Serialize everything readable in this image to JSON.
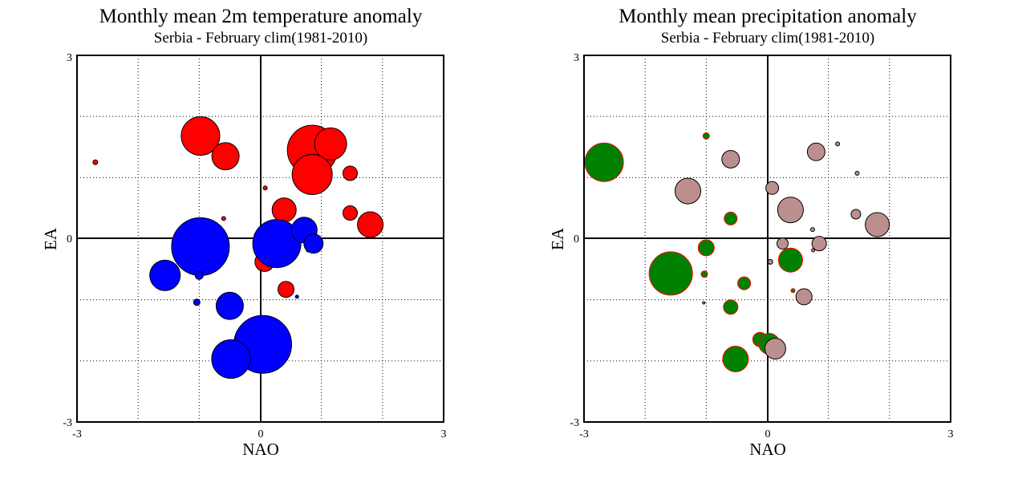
{
  "colors": {
    "warm": "#ff0000",
    "cold": "#0000ff",
    "wet": "#008000",
    "dry": "#bc8f8f",
    "wet_outline": "#ff0000",
    "dry_outline": "#000000"
  },
  "chart_data": [
    {
      "type": "scatter",
      "title": "Monthly mean 2m temperature anomaly",
      "subtitle": "Serbia - February  clim(1981-2010)",
      "xlabel": "NAO",
      "ylabel": "EA",
      "xlim": [
        -3,
        3
      ],
      "ylim": [
        -3,
        3
      ],
      "x_ticks": [
        "-3",
        "0",
        "3"
      ],
      "y_ticks": [
        "-3",
        "0",
        "3"
      ],
      "grid": true,
      "size_encoding": "marker radius proportional to anomaly magnitude",
      "series": [
        {
          "color": "warm",
          "points": [
            {
              "x": -2.7,
              "y": 1.25,
              "r": 3
            },
            {
              "x": -0.98,
              "y": 1.68,
              "r": 24
            },
            {
              "x": -0.57,
              "y": 1.35,
              "r": 17
            },
            {
              "x": 0.85,
              "y": 1.45,
              "r": 31
            },
            {
              "x": 1.15,
              "y": 1.55,
              "r": 20
            },
            {
              "x": 0.85,
              "y": 1.05,
              "r": 25
            },
            {
              "x": 1.47,
              "y": 1.07,
              "r": 9
            },
            {
              "x": 0.08,
              "y": 0.83,
              "r": 2.5
            },
            {
              "x": 0.39,
              "y": 0.47,
              "r": 15
            },
            {
              "x": -0.6,
              "y": 0.33,
              "r": 2.5
            },
            {
              "x": 1.47,
              "y": 0.42,
              "r": 9
            },
            {
              "x": 1.8,
              "y": 0.23,
              "r": 16
            },
            {
              "x": 0.07,
              "y": -0.38,
              "r": 12
            },
            {
              "x": 0.42,
              "y": -0.83,
              "r": 10
            },
            {
              "x": 0.78,
              "y": -0.19,
              "r": 2
            }
          ]
        },
        {
          "color": "cold",
          "points": [
            {
              "x": -0.98,
              "y": -0.13,
              "r": 36
            },
            {
              "x": 0.27,
              "y": -0.08,
              "r": 30
            },
            {
              "x": 0.72,
              "y": 0.14,
              "r": 16
            },
            {
              "x": 0.87,
              "y": -0.08,
              "r": 12
            },
            {
              "x": -1.56,
              "y": -0.6,
              "r": 19
            },
            {
              "x": -1.0,
              "y": -0.6,
              "r": 5
            },
            {
              "x": -1.04,
              "y": -1.04,
              "r": 4
            },
            {
              "x": -0.5,
              "y": -1.1,
              "r": 17
            },
            {
              "x": 0.04,
              "y": -1.73,
              "r": 36
            },
            {
              "x": -0.48,
              "y": -1.97,
              "r": 24
            },
            {
              "x": 0.6,
              "y": -0.95,
              "r": 2
            }
          ]
        }
      ]
    },
    {
      "type": "scatter",
      "title": "Monthly mean precipitation anomaly",
      "subtitle": "Serbia - February  clim(1981-2010)",
      "xlabel": "NAO",
      "ylabel": "EA",
      "xlim": [
        -3,
        3
      ],
      "ylim": [
        -3,
        3
      ],
      "x_ticks": [
        "-3",
        "0",
        "3"
      ],
      "y_ticks": [
        "-3",
        "0",
        "3"
      ],
      "grid": true,
      "size_encoding": "marker radius proportional to anomaly magnitude",
      "series": [
        {
          "color": "wet",
          "points": [
            {
              "x": -2.67,
              "y": 1.25,
              "r": 24
            },
            {
              "x": -1.0,
              "y": 1.68,
              "r": 4
            },
            {
              "x": -0.6,
              "y": 0.33,
              "r": 8
            },
            {
              "x": -1.0,
              "y": -0.15,
              "r": 10
            },
            {
              "x": -1.58,
              "y": -0.57,
              "r": 27
            },
            {
              "x": -1.03,
              "y": -0.58,
              "r": 4
            },
            {
              "x": 0.38,
              "y": -0.35,
              "r": 15
            },
            {
              "x": -0.38,
              "y": -0.73,
              "r": 8
            },
            {
              "x": 0.42,
              "y": -0.85,
              "r": 2.5
            },
            {
              "x": -0.6,
              "y": -1.12,
              "r": 9
            },
            {
              "x": -0.12,
              "y": -1.65,
              "r": 9
            },
            {
              "x": 0.03,
              "y": -1.72,
              "r": 13
            },
            {
              "x": -0.52,
              "y": -1.97,
              "r": 16
            },
            {
              "x": 0.36,
              "y": 0.4,
              "r": 1
            }
          ]
        },
        {
          "color": "dry",
          "points": [
            {
              "x": -1.3,
              "y": 0.78,
              "r": 16
            },
            {
              "x": -0.6,
              "y": 1.3,
              "r": 11
            },
            {
              "x": 0.8,
              "y": 1.42,
              "r": 11
            },
            {
              "x": 1.15,
              "y": 1.55,
              "r": 2.5
            },
            {
              "x": 1.47,
              "y": 1.07,
              "r": 2.5
            },
            {
              "x": 0.08,
              "y": 0.83,
              "r": 8
            },
            {
              "x": 0.38,
              "y": 0.47,
              "r": 16
            },
            {
              "x": 1.45,
              "y": 0.4,
              "r": 6
            },
            {
              "x": 1.8,
              "y": 0.23,
              "r": 15
            },
            {
              "x": 0.74,
              "y": 0.15,
              "r": 2.5
            },
            {
              "x": 0.25,
              "y": -0.08,
              "r": 7
            },
            {
              "x": 0.85,
              "y": -0.08,
              "r": 9
            },
            {
              "x": 0.75,
              "y": -0.19,
              "r": 2
            },
            {
              "x": 0.05,
              "y": -0.38,
              "r": 3
            },
            {
              "x": 0.6,
              "y": -0.95,
              "r": 10
            },
            {
              "x": 0.13,
              "y": -1.8,
              "r": 13
            },
            {
              "x": -1.04,
              "y": -1.05,
              "r": 1.5
            }
          ]
        }
      ]
    }
  ]
}
